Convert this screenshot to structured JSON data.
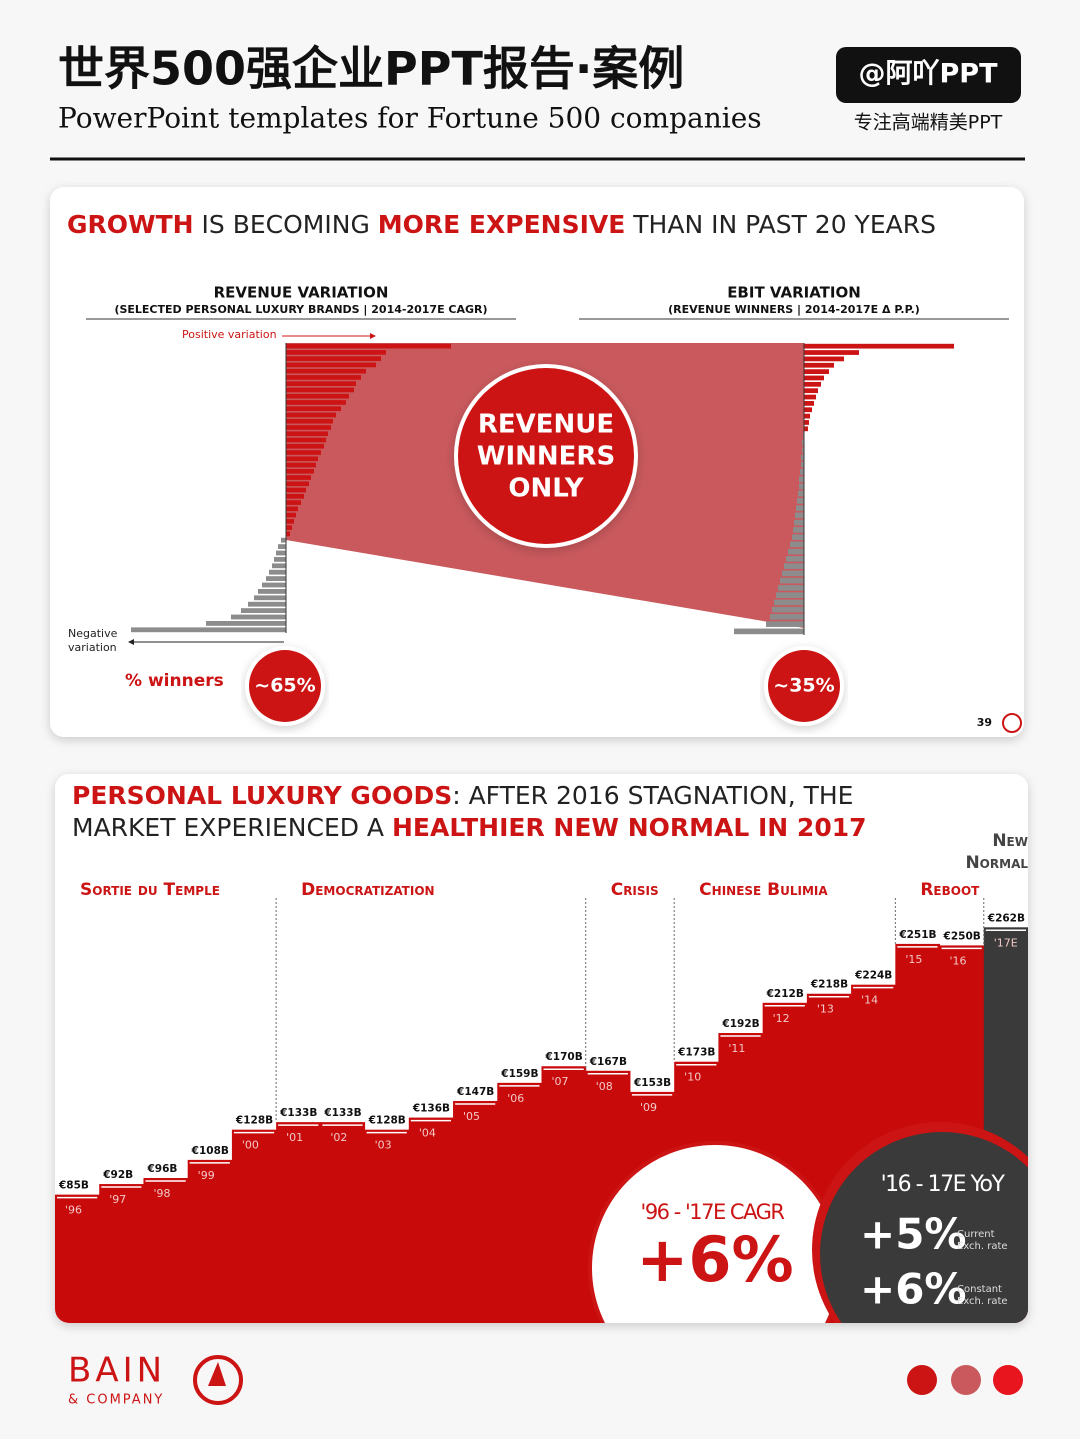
{
  "header": {
    "title": "世界500强企业PPT报告·案例",
    "subtitle": "PowerPoint templates for Fortune 500 companies",
    "badge": "@阿吖PPT",
    "tagline": "专注高端精美PPT"
  },
  "slide1": {
    "title_parts": [
      {
        "text": "GROWTH",
        "highlight": true
      },
      {
        "text": " IS BECOMING ",
        "highlight": false
      },
      {
        "text": "MORE EXPENSIVE",
        "highlight": true
      },
      {
        "text": " THAN IN PAST 20 YEARS",
        "highlight": false
      }
    ],
    "positive_label": "Positive variation",
    "negative_label": [
      "Negative",
      "variation"
    ],
    "center_label": [
      "REVENUE",
      "WINNERS",
      "ONLY"
    ],
    "winners_label": "% winners",
    "left_share": "~65%",
    "right_share": "~35%",
    "page_number": "39"
  },
  "slide2": {
    "title_lines": [
      [
        {
          "text": "PERSONAL LUXURY GOODS",
          "highlight": true
        },
        {
          "text": ": AFTER 2016 STAGNATION, THE",
          "highlight": false
        }
      ],
      [
        {
          "text": "MARKET EXPERIENCED A ",
          "highlight": false
        },
        {
          "text": "HEALTHIER NEW NORMAL IN 2017",
          "highlight": true
        }
      ]
    ],
    "phases": [
      "Sortie du Temple",
      "Democratization",
      "Crisis",
      "Chinese Bulimia",
      "Reboot"
    ],
    "new_normal": [
      "New",
      "Normal"
    ],
    "cagr_label": "'96 - '17E CAGR",
    "cagr_value": "+6%",
    "yoy_label": "'16 - 17E YoY",
    "yoy_current": "+5%",
    "yoy_current_label": [
      "Current",
      "Exch. rate"
    ],
    "yoy_constant": "+6%",
    "yoy_constant_label": [
      "Constant",
      "Exch. rate"
    ]
  },
  "footer": {
    "brand": "BAIN",
    "brand_sub": "& COMPANY"
  },
  "chart_data": [
    {
      "type": "hbar",
      "title": "REVENUE VARIATION",
      "subtitle": "(SELECTED PERSONAL LUXURY BRANDS | 2014-2017E CAGR)",
      "positive_color": "#cc1414",
      "negative_color": "#8c8c8c",
      "values": [
        165,
        100,
        95,
        90,
        80,
        75,
        70,
        68,
        63,
        60,
        55,
        50,
        47,
        45,
        42,
        40,
        38,
        35,
        32,
        30,
        28,
        25,
        23,
        20,
        18,
        15,
        12,
        10,
        8,
        6,
        4,
        -5,
        -8,
        -10,
        -12,
        -14,
        -17,
        -20,
        -24,
        -28,
        -32,
        -38,
        -45,
        -55,
        -80,
        -155
      ]
    },
    {
      "type": "hbar",
      "title": "EBIT VARIATION",
      "subtitle": "(REVENUE WINNERS | 2014-2017E Δ P.P.)",
      "positive_color": "#cc1414",
      "negative_color": "#8c8c8c",
      "values": [
        150,
        55,
        40,
        30,
        25,
        20,
        17,
        14,
        12,
        10,
        8,
        6,
        5,
        4,
        -1,
        -2,
        -2,
        -3,
        -3,
        -4,
        -5,
        -5,
        -6,
        -7,
        -8,
        -9,
        -10,
        -11,
        -12,
        -14,
        -16,
        -18,
        -20,
        -22,
        -24,
        -26,
        -28,
        -30,
        -32,
        -34,
        -38,
        -70
      ]
    },
    {
      "type": "step",
      "categories": [
        "'96",
        "'97",
        "'98",
        "'99",
        "'00",
        "'01",
        "'02",
        "'03",
        "'04",
        "'05",
        "'06",
        "'07",
        "'08",
        "'09",
        "'10",
        "'11",
        "'12",
        "'13",
        "'14",
        "'15",
        "'16",
        "'17E"
      ],
      "values": [
        85,
        92,
        96,
        108,
        128,
        133,
        133,
        128,
        136,
        147,
        159,
        170,
        167,
        153,
        173,
        192,
        212,
        218,
        224,
        251,
        250,
        262
      ],
      "value_labels": [
        "€85B",
        "€92B",
        "€96B",
        "€108B",
        "€128B",
        "€133B",
        "€133B",
        "€128B",
        "€136B",
        "€147B",
        "€159B",
        "€170B",
        "€167B",
        "€153B",
        "€173B",
        "€192B",
        "€212B",
        "€218B",
        "€224B",
        "€251B",
        "€250B",
        "€262B"
      ],
      "bar_colors": [
        "#c80a0a",
        "#c80a0a",
        "#c80a0a",
        "#c80a0a",
        "#c80a0a",
        "#c80a0a",
        "#c80a0a",
        "#c80a0a",
        "#c80a0a",
        "#c80a0a",
        "#c80a0a",
        "#c80a0a",
        "#c80a0a",
        "#c80a0a",
        "#c80a0a",
        "#c80a0a",
        "#c80a0a",
        "#c80a0a",
        "#c80a0a",
        "#c80a0a",
        "#c80a0a",
        "#3a3a3a"
      ],
      "ylim": [
        0,
        290
      ]
    }
  ]
}
